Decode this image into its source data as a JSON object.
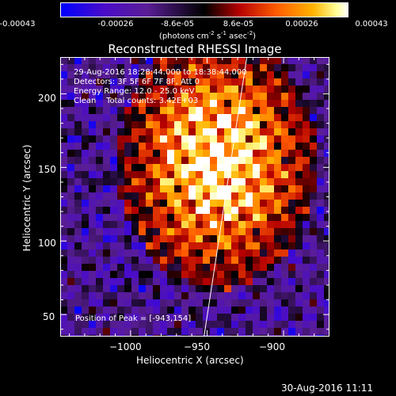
{
  "colorbar": {
    "ticks": [
      "-0.00043",
      "-0.00026",
      "-8.6e-05",
      "8.6e-05",
      "0.00026",
      "0.00043"
    ],
    "units": "(photons cm",
    "units_sup1": "-2",
    "units_mid1": " s",
    "units_sup2": "-1",
    "units_mid2": " asec",
    "units_sup3": "-2",
    "units_end": ")"
  },
  "chart_data": {
    "type": "heatmap",
    "title": "Reconstructed RHESSI Image",
    "xlabel": "Heliocentric X (arcsec)",
    "ylabel": "Heliocentric Y (arcsec)",
    "xlim": [
      -1046,
      -870
    ],
    "ylim": [
      35,
      225
    ],
    "x_ticks": [
      -1000,
      -950,
      -900
    ],
    "x_tick_labels": [
      "−1000",
      "−950",
      "−900"
    ],
    "y_ticks": [
      50,
      100,
      150,
      200
    ],
    "y_tick_labels": [
      "50",
      "100",
      "150",
      "200"
    ],
    "colorbar_range": [
      -0.00043,
      0.00043
    ],
    "colormap": "blue-purple-black-red-orange-yellow-white",
    "peak": [
      -943,
      154
    ],
    "limb_line": [
      [
        -952,
        35
      ],
      [
        -924,
        225
      ]
    ],
    "annotations": [
      "29-Aug-2016 18:28:44.000 to 18:38:44.000",
      "Detectors: 3F 5F 6F 7F 8F, Att 0",
      "Energy Range: 12.0 - 25.0 keV",
      "Clean    Total counts: 3.42E+03"
    ],
    "peak_label": "Position of Peak = [-943,154]"
  },
  "timestamp": "30-Aug-2016 11:11"
}
